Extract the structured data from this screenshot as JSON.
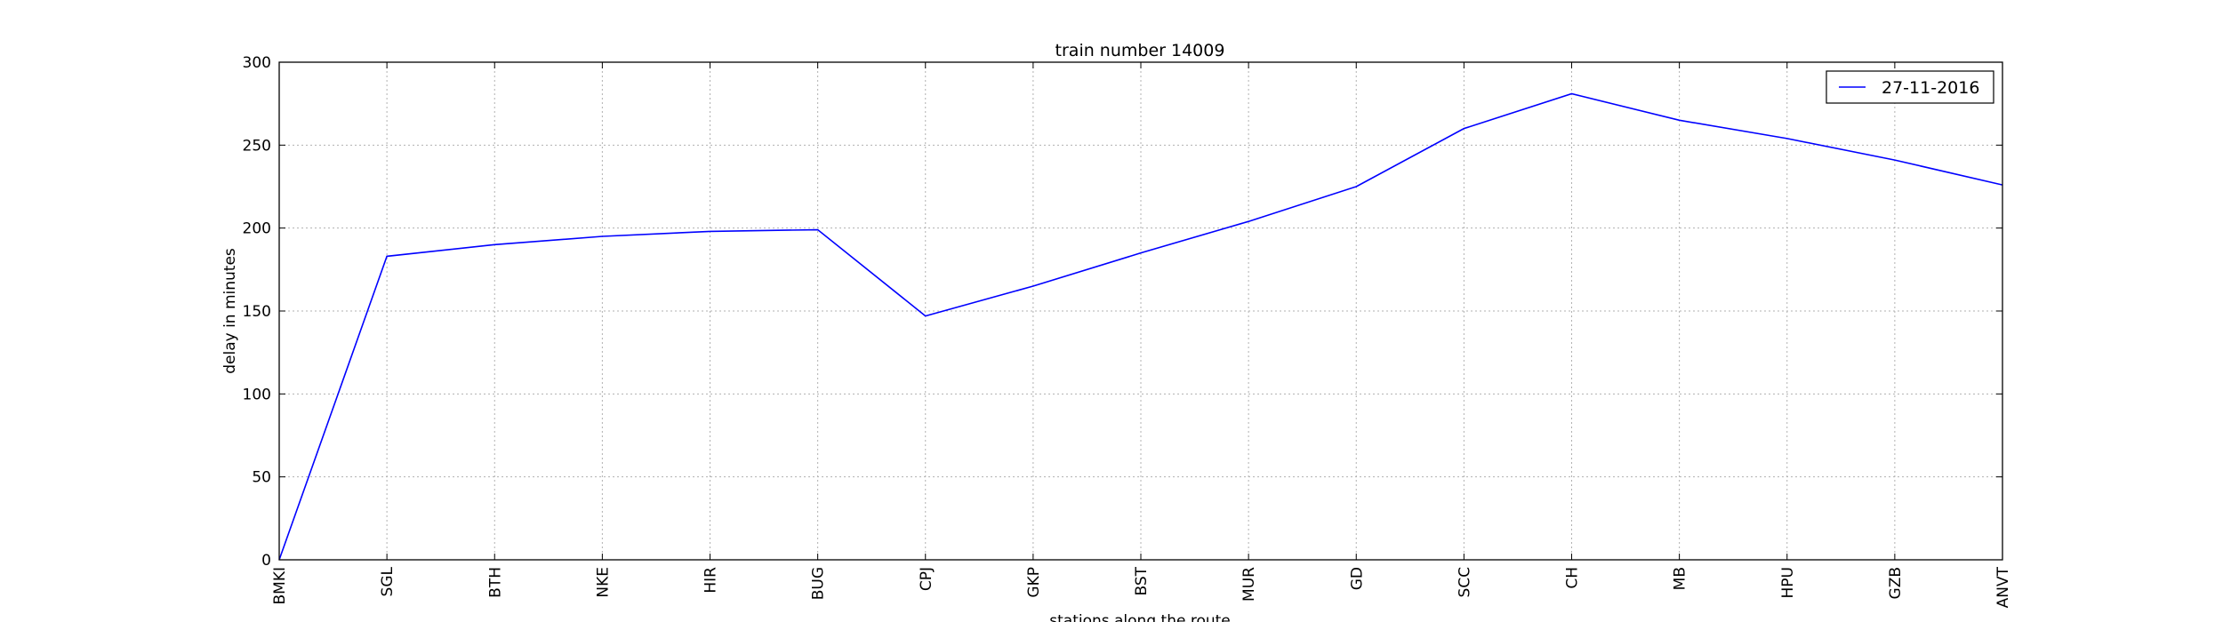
{
  "chart_data": {
    "type": "line",
    "title": "train number 14009",
    "xlabel": "stations along the route",
    "ylabel": "delay in minutes",
    "categories": [
      "BMKI",
      "SGL",
      "BTH",
      "NKE",
      "HIR",
      "BUG",
      "CPJ",
      "GKP",
      "BST",
      "MUR",
      "GD",
      "SCC",
      "CH",
      "MB",
      "HPU",
      "GZB",
      "ANVT"
    ],
    "series": [
      {
        "name": "27-11-2016",
        "color": "#0000ff",
        "values": [
          0,
          183,
          190,
          195,
          198,
          199,
          147,
          165,
          185,
          204,
          225,
          260,
          281,
          265,
          254,
          241,
          226
        ]
      }
    ],
    "ylim": [
      0,
      300
    ],
    "yticks": [
      0,
      50,
      100,
      150,
      200,
      250,
      300
    ],
    "grid": true,
    "legend_position": "top-right"
  }
}
